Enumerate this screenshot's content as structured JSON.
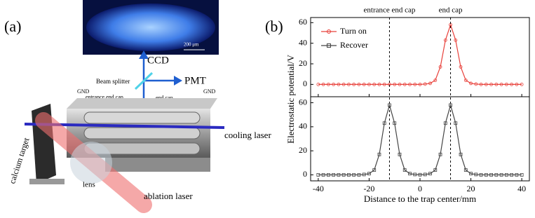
{
  "diagram": {
    "panel_label": "(a)",
    "image_scale": "200 μm",
    "ccd": "CCD",
    "pmt": "PMT",
    "beam_splitter": "Beam splitter",
    "gnd_left": "GND",
    "entrance_end_cap": "entrance end cap",
    "end_cap": "end cap",
    "gnd_right": "GND",
    "calcium_target": "calcium target",
    "lens": "lens",
    "ablation_laser": "ablation laser",
    "cooling_laser": "cooling laser"
  },
  "chart_data": [
    {
      "type": "line",
      "panel_label": "(b)",
      "ylabel": "Electrostatic potential/V",
      "annotations": [
        {
          "text": "entrance end cap",
          "x": -12
        },
        {
          "text": "end cap",
          "x": 12
        }
      ],
      "legend": "upper left",
      "x": [
        -40,
        -38,
        -36,
        -34,
        -32,
        -30,
        -28,
        -26,
        -24,
        -22,
        -20,
        -18,
        -16,
        -14,
        -12,
        -10,
        -8,
        -6,
        -4,
        -2,
        0,
        2,
        4,
        6,
        8,
        10,
        12,
        14,
        16,
        18,
        20,
        22,
        24,
        26,
        28,
        30,
        32,
        34,
        36,
        38,
        40
      ],
      "series": [
        {
          "name": "Turn on",
          "color": "#e8403a",
          "marker": "circle",
          "values": [
            0,
            0,
            0,
            0,
            0,
            0,
            0,
            0,
            0,
            0,
            0,
            0,
            0,
            0,
            0,
            0,
            0,
            0,
            0,
            0,
            0,
            0.3,
            1,
            4,
            17,
            43,
            58,
            43,
            17,
            4,
            1,
            0.3,
            0,
            0,
            0,
            0,
            0,
            0,
            0,
            0,
            0
          ]
        }
      ],
      "xlim": [
        -43,
        43
      ],
      "ylim": [
        -12,
        65
      ],
      "yticks": [
        0,
        20,
        40,
        60
      ]
    },
    {
      "type": "line",
      "xlabel": "Distance to the trap center/mm",
      "x": [
        -40,
        -38,
        -36,
        -34,
        -32,
        -30,
        -28,
        -26,
        -24,
        -22,
        -20,
        -18,
        -16,
        -14,
        -12,
        -10,
        -8,
        -6,
        -4,
        -2,
        0,
        2,
        4,
        6,
        8,
        10,
        12,
        14,
        16,
        18,
        20,
        22,
        24,
        26,
        28,
        30,
        32,
        34,
        36,
        38,
        40
      ],
      "series": [
        {
          "name": "Recover",
          "color": "#444444",
          "marker": "square",
          "values": [
            0,
            0,
            0,
            0,
            0,
            0,
            0,
            0,
            0,
            0.3,
            1,
            4,
            17,
            43,
            58,
            43,
            17,
            4,
            1,
            0.3,
            0.1,
            0.3,
            1,
            4,
            17,
            43,
            58,
            43,
            17,
            4,
            1,
            0.3,
            0,
            0,
            0,
            0,
            0,
            0,
            0,
            0,
            0
          ]
        }
      ],
      "xlim": [
        -43,
        43
      ],
      "ylim": [
        -5,
        65
      ],
      "yticks": [
        0,
        20,
        40,
        60
      ],
      "xticks": [
        -40,
        -20,
        0,
        20,
        40
      ]
    }
  ]
}
